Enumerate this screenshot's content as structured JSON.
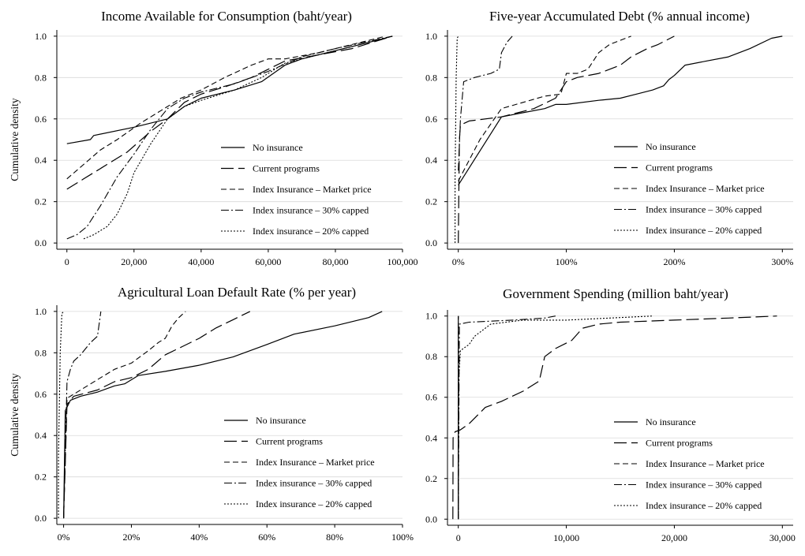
{
  "figure": {
    "ylabel": "Cumulative density",
    "legend": {
      "entries": [
        {
          "label": "No insurance",
          "dash": "",
          "width": 1.2
        },
        {
          "label": "Current programs",
          "dash": "16 6",
          "width": 1.2
        },
        {
          "label": "Index Insurance – Market price",
          "dash": "7 4",
          "width": 1.1
        },
        {
          "label": "Index insurance – 30% capped",
          "dash": "10 3 2 3",
          "width": 1.1
        },
        {
          "label": "Index insurance – 20% capped",
          "dash": "2 2",
          "width": 1.1
        }
      ]
    },
    "colors": {
      "line": "#000000",
      "grid": "#d9d9d9",
      "axis": "#000000"
    }
  },
  "chart_data": [
    {
      "type": "line",
      "title": "Income Available for Consumption (baht/year)",
      "xlabel": "",
      "ylabel": "Cumulative density",
      "xlim": [
        -3000,
        100000
      ],
      "ylim": [
        -0.03,
        1.03
      ],
      "xticks": [
        0,
        20000,
        40000,
        60000,
        80000,
        100000
      ],
      "xtick_labels": [
        "0",
        "20,000",
        "40,000",
        "60,000",
        "80,000",
        "100,000"
      ],
      "yticks": [
        0,
        0.2,
        0.4,
        0.6,
        0.8,
        1.0
      ],
      "ytick_labels": [
        "0.0",
        "0.2",
        "0.4",
        "0.6",
        "0.8",
        "1.0"
      ],
      "grid": true,
      "legend_position": "lower-right",
      "series": [
        {
          "name": "No insurance",
          "x": [
            0,
            7000,
            8000,
            20000,
            30000,
            35000,
            40000,
            50000,
            58000,
            65000,
            70000,
            80000,
            90000,
            97000
          ],
          "y": [
            0.48,
            0.5,
            0.52,
            0.56,
            0.6,
            0.66,
            0.7,
            0.74,
            0.78,
            0.86,
            0.89,
            0.93,
            0.97,
            1.0
          ]
        },
        {
          "name": "Current programs",
          "x": [
            0,
            5000,
            10000,
            18000,
            25000,
            30000,
            35000,
            40000,
            48000,
            55000,
            60000,
            65000,
            75000,
            85000,
            97000
          ],
          "y": [
            0.26,
            0.31,
            0.36,
            0.44,
            0.54,
            0.6,
            0.68,
            0.72,
            0.76,
            0.8,
            0.84,
            0.88,
            0.91,
            0.94,
            1.0
          ]
        },
        {
          "name": "Index Insurance – Market price",
          "x": [
            0,
            5000,
            10000,
            15000,
            22000,
            28000,
            34000,
            40000,
            47000,
            55000,
            60000,
            65000,
            75000,
            85000,
            95000
          ],
          "y": [
            0.31,
            0.38,
            0.45,
            0.5,
            0.58,
            0.64,
            0.7,
            0.74,
            0.8,
            0.86,
            0.89,
            0.89,
            0.92,
            0.96,
            1.0
          ]
        },
        {
          "name": "Index insurance – 30% capped",
          "x": [
            0,
            3000,
            6000,
            10000,
            15000,
            20000,
            25000,
            30000,
            35000,
            40000,
            50000,
            60000,
            70000,
            80000,
            97000
          ],
          "y": [
            0.02,
            0.04,
            0.08,
            0.18,
            0.32,
            0.43,
            0.55,
            0.65,
            0.7,
            0.73,
            0.77,
            0.83,
            0.9,
            0.94,
            1.0
          ]
        },
        {
          "name": "Index insurance – 20% capped",
          "x": [
            5000,
            8000,
            12000,
            15000,
            18000,
            20000,
            25000,
            30000,
            35000,
            40000,
            50000,
            58000,
            65000,
            75000,
            85000,
            97000
          ],
          "y": [
            0.02,
            0.04,
            0.08,
            0.14,
            0.24,
            0.34,
            0.48,
            0.6,
            0.66,
            0.69,
            0.74,
            0.8,
            0.87,
            0.91,
            0.95,
            1.0
          ]
        }
      ]
    },
    {
      "type": "line",
      "title": "Five-year Accumulated Debt (% annual income)",
      "xlabel": "",
      "ylabel": "",
      "xlim": [
        -10,
        310
      ],
      "ylim": [
        -0.03,
        1.03
      ],
      "xticks": [
        0,
        100,
        200,
        300
      ],
      "xtick_labels": [
        "0%",
        "100%",
        "200%",
        "300%"
      ],
      "yticks": [
        0,
        0.2,
        0.4,
        0.6,
        0.8,
        1.0
      ],
      "ytick_labels": [
        "0.0",
        "0.2",
        "0.4",
        "0.6",
        "0.8",
        "1.0"
      ],
      "grid": true,
      "legend_position": "lower-right",
      "series": [
        {
          "name": "No insurance",
          "x": [
            0,
            40,
            60,
            80,
            90,
            100,
            130,
            150,
            165,
            180,
            190,
            195,
            200,
            210,
            230,
            250,
            270,
            290,
            300
          ],
          "y": [
            0.28,
            0.61,
            0.63,
            0.65,
            0.67,
            0.67,
            0.69,
            0.7,
            0.72,
            0.74,
            0.76,
            0.79,
            0.81,
            0.86,
            0.88,
            0.9,
            0.94,
            0.99,
            1.0
          ]
        },
        {
          "name": "Current programs",
          "x": [
            0,
            1,
            2,
            10,
            40,
            70,
            90,
            95,
            100,
            110,
            130,
            150,
            160,
            175,
            185,
            200
          ],
          "y": [
            0.0,
            0.5,
            0.57,
            0.59,
            0.61,
            0.65,
            0.7,
            0.74,
            0.78,
            0.8,
            0.82,
            0.86,
            0.9,
            0.94,
            0.96,
            1.0
          ]
        },
        {
          "name": "Index Insurance – Market price",
          "x": [
            0,
            20,
            40,
            60,
            80,
            95,
            100,
            110,
            120,
            130,
            140,
            150,
            160
          ],
          "y": [
            0.3,
            0.5,
            0.65,
            0.68,
            0.71,
            0.72,
            0.82,
            0.82,
            0.84,
            0.92,
            0.96,
            0.98,
            1.0
          ]
        },
        {
          "name": "Index insurance – 30% capped",
          "x": [
            0,
            2,
            5,
            15,
            30,
            38,
            40,
            45,
            50
          ],
          "y": [
            0.35,
            0.6,
            0.78,
            0.8,
            0.82,
            0.84,
            0.92,
            0.97,
            1.0
          ]
        },
        {
          "name": "Index insurance – 20% capped",
          "x": [
            -3,
            -3,
            -2,
            -1,
            0
          ],
          "y": [
            0.0,
            0.3,
            0.8,
            0.99,
            1.0
          ]
        }
      ]
    },
    {
      "type": "line",
      "title": "Agricultural Loan Default Rate (% per year)",
      "xlabel": "",
      "ylabel": "Cumulative density",
      "xlim": [
        -2,
        100
      ],
      "ylim": [
        -0.03,
        1.03
      ],
      "xticks": [
        0,
        20,
        40,
        60,
        80,
        100
      ],
      "xtick_labels": [
        "0%",
        "20%",
        "40%",
        "60%",
        "80%",
        "100%"
      ],
      "yticks": [
        0,
        0.2,
        0.4,
        0.6,
        0.8,
        1.0
      ],
      "ytick_labels": [
        "0.0",
        "0.2",
        "0.4",
        "0.6",
        "0.8",
        "1.0"
      ],
      "grid": true,
      "legend_position": "lower-right",
      "series": [
        {
          "name": "No insurance",
          "x": [
            0,
            0.5,
            2,
            5,
            10,
            15,
            18,
            22,
            30,
            40,
            50,
            60,
            68,
            80,
            90,
            94
          ],
          "y": [
            0.0,
            0.52,
            0.57,
            0.59,
            0.61,
            0.64,
            0.65,
            0.69,
            0.71,
            0.74,
            0.78,
            0.84,
            0.89,
            0.93,
            0.97,
            1.0
          ]
        },
        {
          "name": "Current programs",
          "x": [
            0,
            1,
            3,
            10,
            15,
            20,
            25,
            30,
            35,
            40,
            45,
            50,
            55
          ],
          "y": [
            0.0,
            0.55,
            0.59,
            0.62,
            0.66,
            0.68,
            0.72,
            0.79,
            0.83,
            0.87,
            0.92,
            0.96,
            1.0
          ]
        },
        {
          "name": "Index Insurance – Market price",
          "x": [
            0,
            1,
            5,
            10,
            15,
            20,
            25,
            28,
            30,
            32,
            34,
            36
          ],
          "y": [
            0.0,
            0.58,
            0.62,
            0.67,
            0.72,
            0.75,
            0.81,
            0.85,
            0.87,
            0.93,
            0.97,
            1.0
          ]
        },
        {
          "name": "Index insurance – 30% capped",
          "x": [
            0,
            1,
            2,
            3,
            5,
            8,
            10,
            11
          ],
          "y": [
            0.0,
            0.66,
            0.72,
            0.76,
            0.79,
            0.85,
            0.88,
            1.0
          ]
        },
        {
          "name": "Index insurance – 20% capped",
          "x": [
            -1.5,
            -1.5,
            -1,
            -0.5,
            0
          ],
          "y": [
            0.0,
            0.3,
            0.8,
            0.99,
            1.0
          ]
        }
      ]
    },
    {
      "type": "line",
      "title": "Government Spending (million baht/year)",
      "xlabel": "",
      "ylabel": "",
      "xlim": [
        -1000,
        31000
      ],
      "ylim": [
        -0.03,
        1.03
      ],
      "xticks": [
        0,
        10000,
        20000,
        30000
      ],
      "xtick_labels": [
        "0",
        "10,000",
        "20,000",
        "30,000"
      ],
      "yticks": [
        0,
        0.2,
        0.4,
        0.6,
        0.8,
        1.0
      ],
      "ytick_labels": [
        "0.0",
        "0.2",
        "0.4",
        "0.6",
        "0.8",
        "1.0"
      ],
      "grid": true,
      "legend_position": "lower-right",
      "series": [
        {
          "name": "No insurance",
          "x": [
            0,
            0,
            10
          ],
          "y": [
            0.0,
            0.99,
            1.0
          ]
        },
        {
          "name": "Current programs",
          "x": [
            -500,
            -480,
            -300,
            200,
            1000,
            2500,
            4000,
            6000,
            7500,
            8000,
            9000,
            10500,
            11500,
            13000,
            15000,
            20000,
            25000,
            29500
          ],
          "y": [
            0.0,
            0.4,
            0.43,
            0.44,
            0.47,
            0.55,
            0.58,
            0.63,
            0.68,
            0.8,
            0.84,
            0.88,
            0.94,
            0.96,
            0.97,
            0.98,
            0.99,
            1.0
          ]
        },
        {
          "name": "Index Insurance – Market price",
          "x": [
            0,
            0,
            10
          ],
          "y": [
            0.0,
            0.99,
            1.0
          ]
        },
        {
          "name": "Index insurance – 30% capped",
          "x": [
            0,
            100,
            1000,
            5000,
            8000,
            9000
          ],
          "y": [
            0.0,
            0.96,
            0.97,
            0.98,
            0.99,
            1.0
          ]
        },
        {
          "name": "Index insurance – 20% capped",
          "x": [
            0,
            50,
            200,
            1000,
            1500,
            3000,
            6000,
            10000,
            18000
          ],
          "y": [
            0.0,
            0.7,
            0.83,
            0.86,
            0.9,
            0.96,
            0.98,
            0.98,
            1.0
          ]
        }
      ]
    }
  ]
}
